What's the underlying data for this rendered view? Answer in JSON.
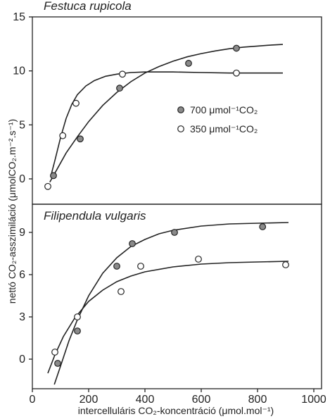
{
  "chart_data": [
    {
      "type": "scatter",
      "title": "Festuca rupicola",
      "xlim": [
        0,
        1000
      ],
      "ylim": [
        -1,
        15
      ],
      "yticks": [
        0,
        5,
        10,
        15
      ],
      "colors": {
        "700": "#8a8a8a",
        "350": "#ffffff"
      },
      "legend": {
        "position": "center-right"
      },
      "series": [
        {
          "key": "700",
          "name": "700 μmol⁻¹CO₂",
          "points": [
            [
              75,
              0.3
            ],
            [
              170,
              3.7
            ],
            [
              310,
              8.4
            ],
            [
              555,
              10.7
            ],
            [
              725,
              12.1
            ]
          ],
          "fit": [
            [
              62,
              -0.3
            ],
            [
              90,
              1.0
            ],
            [
              120,
              2.4
            ],
            [
              160,
              3.9
            ],
            [
              200,
              5.3
            ],
            [
              250,
              6.8
            ],
            [
              300,
              8.0
            ],
            [
              350,
              9.0
            ],
            [
              400,
              9.8
            ],
            [
              450,
              10.4
            ],
            [
              500,
              10.9
            ],
            [
              550,
              11.3
            ],
            [
              600,
              11.6
            ],
            [
              650,
              11.85
            ],
            [
              700,
              12.05
            ],
            [
              750,
              12.2
            ],
            [
              800,
              12.3
            ],
            [
              850,
              12.4
            ],
            [
              890,
              12.45
            ]
          ]
        },
        {
          "key": "350",
          "name": "350 μmol⁻¹CO₂",
          "points": [
            [
              55,
              -0.7
            ],
            [
              108,
              4.0
            ],
            [
              155,
              7.0
            ],
            [
              320,
              9.7
            ],
            [
              725,
              9.8
            ]
          ],
          "fit": [
            [
              65,
              0.2
            ],
            [
              80,
              1.7
            ],
            [
              100,
              3.8
            ],
            [
              120,
              5.6
            ],
            [
              140,
              6.9
            ],
            [
              160,
              7.8
            ],
            [
              190,
              8.6
            ],
            [
              220,
              9.1
            ],
            [
              260,
              9.5
            ],
            [
              300,
              9.7
            ],
            [
              350,
              9.85
            ],
            [
              400,
              9.9
            ],
            [
              500,
              9.9
            ],
            [
              600,
              9.85
            ],
            [
              700,
              9.8
            ],
            [
              800,
              9.8
            ],
            [
              890,
              9.8
            ]
          ]
        }
      ]
    },
    {
      "type": "scatter",
      "title": "Filipendula vulgaris",
      "xlim": [
        0,
        1000
      ],
      "xticks": [
        0,
        200,
        400,
        600,
        800,
        1000
      ],
      "ylim": [
        -2,
        10
      ],
      "yticks": [
        0,
        3,
        6,
        9
      ],
      "xlabel": "intercelluláris CO₂-koncentráció (μmol.mol⁻¹)",
      "colors": {
        "700": "#8a8a8a",
        "350": "#ffffff"
      },
      "series": [
        {
          "key": "700",
          "points": [
            [
              90,
              -0.3
            ],
            [
              160,
              2.0
            ],
            [
              300,
              6.6
            ],
            [
              355,
              8.2
            ],
            [
              505,
              9.0
            ],
            [
              818,
              9.4
            ]
          ],
          "fit": [
            [
              78,
              -1.8
            ],
            [
              100,
              -0.5
            ],
            [
              130,
              1.3
            ],
            [
              160,
              2.8
            ],
            [
              200,
              4.5
            ],
            [
              250,
              6.1
            ],
            [
              300,
              7.2
            ],
            [
              350,
              8.0
            ],
            [
              400,
              8.5
            ],
            [
              450,
              8.9
            ],
            [
              500,
              9.15
            ],
            [
              600,
              9.45
            ],
            [
              700,
              9.6
            ],
            [
              800,
              9.65
            ],
            [
              910,
              9.7
            ]
          ]
        },
        {
          "key": "350",
          "points": [
            [
              80,
              0.5
            ],
            [
              160,
              3.0
            ],
            [
              315,
              4.8
            ],
            [
              385,
              6.6
            ],
            [
              590,
              7.1
            ],
            [
              900,
              6.7
            ]
          ],
          "fit": [
            [
              55,
              -1.0
            ],
            [
              80,
              0.3
            ],
            [
              110,
              1.6
            ],
            [
              150,
              2.9
            ],
            [
              200,
              4.1
            ],
            [
              250,
              4.9
            ],
            [
              300,
              5.5
            ],
            [
              350,
              5.9
            ],
            [
              400,
              6.2
            ],
            [
              500,
              6.55
            ],
            [
              600,
              6.75
            ],
            [
              700,
              6.85
            ],
            [
              800,
              6.9
            ],
            [
              910,
              6.95
            ]
          ]
        }
      ]
    }
  ],
  "ylabel": "nettó CO₂-asszimiláció (μmolCO₂.m⁻².s⁻¹)"
}
